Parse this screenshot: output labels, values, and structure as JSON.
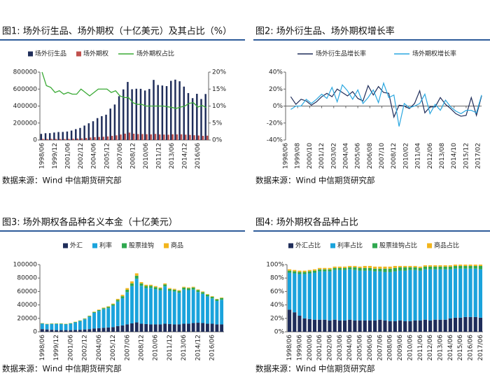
{
  "chart_data": [
    {
      "type": "bar",
      "title": "图1: 场外衍生品、场外期权（十亿美元）及其占比（%）",
      "source": "数据来源：Wind 中信期货研究部",
      "categories": [
        "1998/06",
        null,
        null,
        "1999/12",
        null,
        null,
        "2001/06",
        null,
        null,
        "2002/12",
        null,
        null,
        "2004/06",
        null,
        null,
        "2005/12",
        null,
        null,
        "2007/06",
        null,
        null,
        "2008/12",
        null,
        null,
        "2010/06",
        null,
        null,
        "2011/12",
        null,
        null,
        "2013/06",
        null,
        null,
        "2014/12",
        null,
        null,
        "2016/06",
        null,
        null
      ],
      "ylim": [
        0,
        800000
      ],
      "yticks": [
        0,
        200000,
        400000,
        600000,
        800000
      ],
      "y2lim": [
        0,
        20
      ],
      "y2ticks": [
        {
          "value": 0,
          "label": "0%"
        },
        {
          "value": 5,
          "label": "5%"
        },
        {
          "value": 10,
          "label": "10%"
        },
        {
          "value": 15,
          "label": "15%"
        },
        {
          "value": 20,
          "label": "20%"
        }
      ],
      "series": [
        {
          "name": "场外衍生品",
          "color": "#1f2d5a",
          "values": [
            72000,
            80000,
            81000,
            88000,
            94000,
            95000,
            100000,
            111000,
            128000,
            142000,
            170000,
            197000,
            221000,
            258000,
            281000,
            298000,
            370000,
            418000,
            516000,
            596000,
            684000,
            598000,
            604000,
            603000,
            583000,
            601000,
            708000,
            648000,
            642000,
            635000,
            697000,
            711000,
            692000,
            629000,
            553000,
            493000,
            544000,
            483000,
            542000
          ]
        },
        {
          "name": "场外期权",
          "color": "#c0504d",
          "values": [
            13000,
            12000,
            12500,
            12500,
            12500,
            12000,
            13000,
            15000,
            17000,
            20000,
            24000,
            30000,
            33000,
            36000,
            38000,
            42000,
            49000,
            55000,
            65000,
            75000,
            87000,
            74000,
            70000,
            70000,
            68000,
            66000,
            72000,
            65000,
            64000,
            62000,
            67000,
            66000,
            67000,
            63000,
            60000,
            56000,
            53000,
            49000,
            51000
          ]
        },
        {
          "name": "场外期权占比",
          "color": "#3aaa35",
          "type": "line",
          "axis": "y2",
          "values": [
            20,
            16,
            15.5,
            14,
            14.5,
            13.5,
            14,
            13.5,
            13.5,
            15,
            14,
            13,
            14,
            15,
            15,
            15,
            14,
            14.5,
            13,
            12.5,
            12.5,
            11,
            10.5,
            10.5,
            10,
            10,
            10,
            10,
            10,
            9.8,
            9.6,
            9.3,
            9.7,
            10,
            10.8,
            11,
            9.7,
            10.2,
            9.5
          ]
        }
      ]
    },
    {
      "type": "line",
      "title": "图2: 场外衍生品、场外期权增长率",
      "source": "数据来源：Wind 中信期货研究部",
      "x": [
        "1998/12",
        "1999/06",
        "1999/12",
        "2000/06",
        "2000/12",
        "2001/06",
        "2001/12",
        "2002/06",
        "2002/12",
        "2003/06",
        "2003/12",
        "2004/06",
        "2004/12",
        "2005/06",
        "2005/12",
        "2006/06",
        "2006/12",
        "2007/06",
        "2007/12",
        "2008/06",
        "2008/12",
        "2009/06",
        "2009/12",
        "2010/06",
        "2010/12",
        "2011/06",
        "2011/12",
        "2012/06",
        "2012/12",
        "2013/06",
        "2013/12",
        "2014/06",
        "2014/12",
        "2015/06",
        "2015/12",
        "2016/06",
        "2016/12",
        "2017/06"
      ],
      "xlim": [
        "1998/06",
        "2017/06"
      ],
      "xticks": [
        "1998/06",
        "1999/08",
        "2000/10",
        "2001/12",
        "2003/02",
        "2004/04",
        "2005/06",
        "2006/08",
        "2007/10",
        "2008/12",
        "2010/02",
        "2011/04",
        "2012/06",
        "2013/08",
        "2014/10",
        "2015/12",
        "2017/02"
      ],
      "ylim": [
        -40,
        40
      ],
      "yticks": [
        {
          "value": -40,
          "label": "-40%"
        },
        {
          "value": -20,
          "label": "-20%"
        },
        {
          "value": 0,
          "label": "0%"
        },
        {
          "value": 20,
          "label": "20%"
        },
        {
          "value": 40,
          "label": "40%"
        }
      ],
      "series": [
        {
          "name": "场外衍生品增长率",
          "color": "#1f2d5a",
          "values": [
            11,
            2,
            8,
            6,
            1,
            5,
            11,
            15,
            11,
            20,
            16,
            12,
            17,
            9,
            6,
            24,
            13,
            23,
            16,
            15,
            -13,
            1,
            0,
            -3,
            3,
            18,
            -8,
            -1,
            -1,
            10,
            2,
            -3,
            -9,
            -12,
            -11,
            10,
            -11,
            12
          ]
        },
        {
          "name": "场外期权增长率",
          "color": "#2aa7e0",
          "values": [
            -4,
            0,
            0,
            8,
            3,
            8,
            14,
            9,
            22,
            5,
            25,
            18,
            8,
            19,
            3,
            10,
            19,
            4,
            27,
            10,
            13,
            -24,
            3,
            -2,
            0,
            3,
            14,
            -9,
            2,
            -5,
            7,
            -1,
            -6,
            -9,
            -5,
            -5,
            -8,
            13
          ]
        }
      ]
    },
    {
      "type": "stacked_bar",
      "title": "图3: 场外期权各品种名义本金（十亿美元）",
      "source": "数据来源：Wind 中信期货研究部",
      "categories": [
        "1998/06",
        null,
        null,
        "1999/12",
        null,
        null,
        "2001/06",
        null,
        null,
        "2002/12",
        null,
        null,
        "2004/06",
        null,
        null,
        "2005/12",
        null,
        null,
        "2007/06",
        null,
        null,
        "2008/12",
        null,
        null,
        "2010/06",
        null,
        null,
        "2011/12",
        null,
        null,
        "2013/06",
        null,
        null,
        "2014/12",
        null,
        null,
        "2016/06",
        null,
        null
      ],
      "ylim": [
        0,
        100000
      ],
      "yticks": [
        0,
        20000,
        40000,
        60000,
        80000,
        100000
      ],
      "series": [
        {
          "name": "外汇",
          "color": "#1f2d5a",
          "values": [
            4000,
            3500,
            3000,
            2500,
            2500,
            2500,
            2500,
            2800,
            3000,
            3500,
            4000,
            5000,
            5500,
            6000,
            6500,
            7000,
            8500,
            9500,
            11000,
            12500,
            14000,
            12000,
            11500,
            11000,
            11000,
            11000,
            12000,
            11500,
            11000,
            11000,
            12000,
            12000,
            13000,
            13500,
            13000,
            12000,
            12000,
            11000,
            11000
          ]
        },
        {
          "name": "利率",
          "color": "#1aa3dc",
          "values": [
            8100,
            7600,
            8600,
            9000,
            9000,
            8500,
            9500,
            11100,
            12800,
            15100,
            18500,
            23200,
            25400,
            27600,
            28800,
            32000,
            36500,
            40500,
            48000,
            55500,
            65000,
            56500,
            53500,
            54400,
            52500,
            50700,
            55500,
            49500,
            49000,
            47100,
            50900,
            50000,
            49900,
            45700,
            43400,
            40700,
            37700,
            34800,
            36700
          ]
        },
        {
          "name": "股票挂钩",
          "color": "#2fa84f",
          "values": [
            600,
            600,
            600,
            700,
            700,
            700,
            700,
            700,
            800,
            900,
            1000,
            1200,
            1400,
            1600,
            1800,
            2000,
            2500,
            3000,
            3500,
            4000,
            4500,
            3500,
            3200,
            3100,
            3000,
            2900,
            3000,
            2700,
            2700,
            2700,
            2900,
            2900,
            3000,
            2800,
            2700,
            2500,
            2500,
            2500,
            2600
          ]
        },
        {
          "name": "商品",
          "color": "#f2b51c",
          "values": [
            300,
            300,
            300,
            250,
            250,
            300,
            300,
            350,
            400,
            450,
            500,
            600,
            700,
            800,
            900,
            1000,
            1500,
            2000,
            2500,
            3000,
            3500,
            2000,
            1800,
            1500,
            1500,
            1400,
            1500,
            1300,
            1300,
            1200,
            1200,
            1100,
            1100,
            1000,
            900,
            800,
            800,
            700,
            700
          ]
        }
      ]
    },
    {
      "type": "stacked_bar",
      "title": "图4: 场外期权各品种占比",
      "source": "数据来源：Wind 中信期货研究部",
      "categories": [
        "1998/06",
        null,
        "1999/06",
        null,
        "2000/06",
        null,
        "2001/06",
        null,
        "2002/06",
        null,
        "2003/06",
        null,
        "2004/06",
        null,
        "2005/06",
        null,
        "2006/06",
        null,
        "2007/06",
        null,
        "2008/06",
        null,
        "2009/06",
        null,
        "2010/06",
        null,
        "2011/06",
        null,
        "2012/06",
        null,
        "2013/06",
        null,
        "2014/06",
        null,
        "2015/06",
        null,
        "2016/06",
        null,
        "2017/06"
      ],
      "ylim": [
        0,
        100
      ],
      "yticks": [
        {
          "value": 0,
          "label": "0%"
        },
        {
          "value": 20,
          "label": "20%"
        },
        {
          "value": 40,
          "label": "40%"
        },
        {
          "value": 60,
          "label": "60%"
        },
        {
          "value": 80,
          "label": "80%"
        },
        {
          "value": 100,
          "label": "100%"
        }
      ],
      "series": [
        {
          "name": "外汇占比",
          "color": "#1f2d5a",
          "values": [
            33,
            29,
            24,
            20,
            19,
            18,
            18,
            18,
            17,
            18,
            17,
            17,
            18,
            17,
            17,
            17,
            17,
            17,
            18,
            17,
            16,
            16,
            17,
            16,
            16,
            17,
            17,
            18,
            17,
            18,
            18,
            18,
            20,
            21,
            21,
            22,
            22,
            22,
            21
          ]
        },
        {
          "name": "利率占比",
          "color": "#1aa3dc",
          "values": [
            55,
            58,
            62,
            66,
            68,
            70,
            72,
            72,
            73,
            74,
            75,
            75,
            75,
            75,
            74,
            74,
            74,
            73,
            72,
            72,
            73,
            74,
            74,
            75,
            76,
            75,
            74,
            75,
            76,
            75,
            75,
            75,
            73,
            73,
            73,
            72,
            72,
            72,
            72
          ]
        },
        {
          "name": "股票挂钩占比",
          "color": "#2fa84f",
          "values": [
            3,
            3,
            3,
            3,
            3,
            3,
            3,
            3,
            3,
            3,
            3,
            3,
            3,
            4,
            4,
            4,
            4,
            4,
            4,
            5,
            5,
            5,
            5,
            5,
            4,
            4,
            4,
            4,
            4,
            4,
            4,
            4,
            4,
            4,
            4,
            4,
            4,
            4,
            5
          ]
        },
        {
          "name": "商品占比",
          "color": "#f2b51c",
          "values": [
            2,
            2,
            2,
            2,
            2,
            2,
            2,
            2,
            2,
            2,
            2,
            2,
            2,
            2,
            2,
            3,
            3,
            3,
            3,
            3,
            3,
            3,
            2,
            2,
            2,
            2,
            2,
            2,
            2,
            2,
            2,
            2,
            2,
            2,
            2,
            2,
            2,
            2,
            2
          ]
        }
      ]
    }
  ]
}
